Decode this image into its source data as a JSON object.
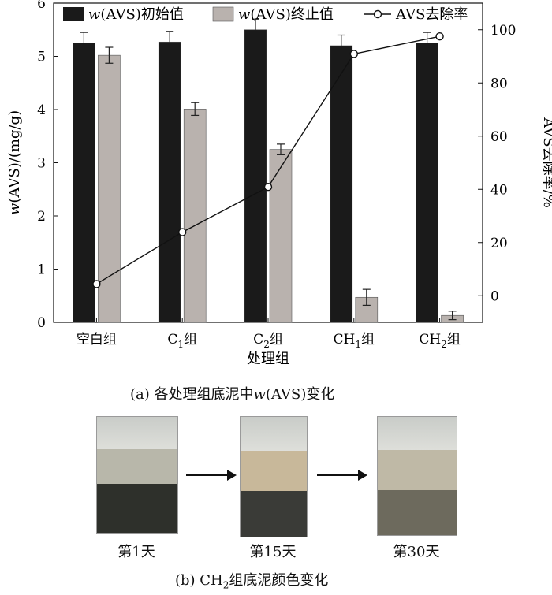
{
  "chart_data": {
    "type": "bar+line",
    "categories_display": [
      {
        "base": "空白组",
        "sub": "",
        "suffix": ""
      },
      {
        "base": "C",
        "sub": "1",
        "suffix": "组"
      },
      {
        "base": "C",
        "sub": "2",
        "suffix": "组"
      },
      {
        "base": "CH",
        "sub": "1",
        "suffix": "组"
      },
      {
        "base": "CH",
        "sub": "2",
        "suffix": "组"
      }
    ],
    "series": [
      {
        "name": "w(AVS)初始值",
        "name_italic": "w",
        "name_rest": "(AVS)初始值",
        "kind": "bar",
        "axis": "left",
        "color": "#1a1a1a",
        "values": [
          5.25,
          5.27,
          5.5,
          5.2,
          5.25
        ],
        "errors": [
          0.2,
          0.2,
          0.2,
          0.2,
          0.2
        ]
      },
      {
        "name": "w(AVS)终止值",
        "name_italic": "w",
        "name_rest": "(AVS)终止值",
        "kind": "bar",
        "axis": "left",
        "color": "#b9b2ae",
        "values": [
          5.02,
          4.01,
          3.25,
          0.47,
          0.13
        ],
        "errors": [
          0.15,
          0.12,
          0.1,
          0.15,
          0.08
        ]
      },
      {
        "name": "AVS去除率",
        "kind": "line",
        "axis": "right",
        "marker": "open-circle",
        "color": "#111111",
        "values": [
          4.4,
          23.9,
          40.9,
          90.9,
          97.5
        ]
      }
    ],
    "xlabel": "处理组",
    "ylabel_left": {
      "italic": "w",
      "rest": "(AVS)/(mg/g)"
    },
    "ylabel_right": "AVS去除率/%",
    "ylim_left": [
      0,
      6
    ],
    "yticks_left": [
      "0",
      "1",
      "2",
      "3",
      "4",
      "5",
      "6"
    ],
    "ylim_right": [
      -10,
      110
    ],
    "yticks_right": [
      "0",
      "20",
      "40",
      "60",
      "80",
      "100"
    ],
    "legend_placement": "top",
    "grid": false
  },
  "captions": {
    "a_prefix": "(a)  各处理组底泥中",
    "a_italic": "w",
    "a_suffix": "(AVS)变化",
    "b_prefix": "(b)  CH",
    "b_sub": "2",
    "b_suffix": "组底泥颜色变化"
  },
  "photos": [
    {
      "label": "第1天",
      "sediment_color": "#2e302b",
      "water_color": "#b8b7aa"
    },
    {
      "label": "第15天",
      "sediment_color": "#3a3b37",
      "water_color": "#c8b89a"
    },
    {
      "label": "第30天",
      "sediment_color": "#6d6a5d",
      "water_color": "#bfb9a6"
    }
  ]
}
